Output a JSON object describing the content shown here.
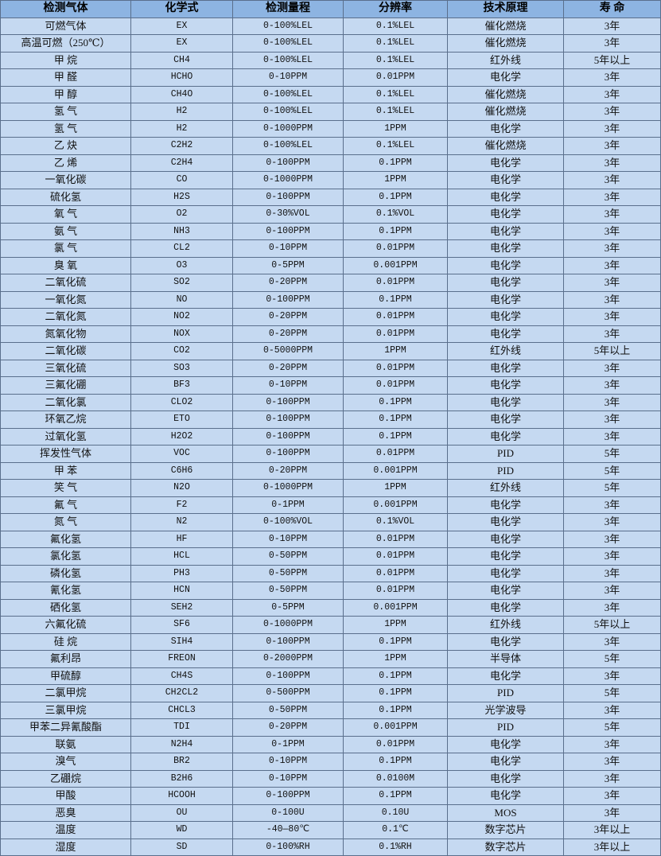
{
  "colors": {
    "header_bg": "#8db4e2",
    "row_bg": "#c5d9f1"
  },
  "table": {
    "headers": [
      "检测气体",
      "化学式",
      "检测量程",
      "分辨率",
      "技术原理",
      "寿 命"
    ],
    "rows": [
      [
        "可燃气体",
        "EX",
        "0-100%LEL",
        "0.1%LEL",
        "催化燃烧",
        "3年"
      ],
      [
        "高温可燃（250℃）",
        "EX",
        "0-100%LEL",
        "0.1%LEL",
        "催化燃烧",
        "3年"
      ],
      [
        "甲 烷",
        "CH4",
        "0-100%LEL",
        "0.1%LEL",
        "红外线",
        "5年以上"
      ],
      [
        "甲 醛",
        "HCHO",
        "0-10PPM",
        "0.01PPM",
        "电化学",
        "3年"
      ],
      [
        "甲 醇",
        "CH4O",
        "0-100%LEL",
        "0.1%LEL",
        "催化燃烧",
        "3年"
      ],
      [
        "氢 气",
        "H2",
        "0-100%LEL",
        "0.1%LEL",
        "催化燃烧",
        "3年"
      ],
      [
        "氢 气",
        "H2",
        "0-1000PPM",
        "1PPM",
        "电化学",
        "3年"
      ],
      [
        "乙 炔",
        "C2H2",
        "0-100%LEL",
        "0.1%LEL",
        "催化燃烧",
        "3年"
      ],
      [
        "乙 烯",
        "C2H4",
        "0-100PPM",
        "0.1PPM",
        "电化学",
        "3年"
      ],
      [
        "一氧化碳",
        "CO",
        "0-1000PPM",
        "1PPM",
        "电化学",
        "3年"
      ],
      [
        "硫化氢",
        "H2S",
        "0-100PPM",
        "0.1PPM",
        "电化学",
        "3年"
      ],
      [
        "氧 气",
        "O2",
        "0-30%VOL",
        "0.1%VOL",
        "电化学",
        "3年"
      ],
      [
        "氨 气",
        "NH3",
        "0-100PPM",
        "0.1PPM",
        "电化学",
        "3年"
      ],
      [
        "氯 气",
        "CL2",
        "0-10PPM",
        "0.01PPM",
        "电化学",
        "3年"
      ],
      [
        "臭 氧",
        "O3",
        "0-5PPM",
        "0.001PPM",
        "电化学",
        "3年"
      ],
      [
        "二氧化硫",
        "SO2",
        "0-20PPM",
        "0.01PPM",
        "电化学",
        "3年"
      ],
      [
        "一氧化氮",
        "NO",
        "0-100PPM",
        "0.1PPM",
        "电化学",
        "3年"
      ],
      [
        "二氧化氮",
        "NO2",
        "0-20PPM",
        "0.01PPM",
        "电化学",
        "3年"
      ],
      [
        "氮氧化物",
        "NOX",
        "0-20PPM",
        "0.01PPM",
        "电化学",
        "3年"
      ],
      [
        "二氧化碳",
        "CO2",
        "0-5000PPM",
        "1PPM",
        "红外线",
        "5年以上"
      ],
      [
        "三氧化硫",
        "SO3",
        "0-20PPM",
        "0.01PPM",
        "电化学",
        "3年"
      ],
      [
        "三氟化硼",
        "BF3",
        "0-10PPM",
        "0.01PPM",
        "电化学",
        "3年"
      ],
      [
        "二氧化氯",
        "CLO2",
        "0-100PPM",
        "0.1PPM",
        "电化学",
        "3年"
      ],
      [
        "环氧乙烷",
        "ETO",
        "0-100PPM",
        "0.1PPM",
        "电化学",
        "3年"
      ],
      [
        "过氧化氢",
        "H2O2",
        "0-100PPM",
        "0.1PPM",
        "电化学",
        "3年"
      ],
      [
        "挥发性气体",
        "VOC",
        "0-100PPM",
        "0.01PPM",
        "PID",
        "5年"
      ],
      [
        "甲 苯",
        "C6H6",
        "0-20PPM",
        "0.001PPM",
        "PID",
        "5年"
      ],
      [
        "笑 气",
        "N2O",
        "0-1000PPM",
        "1PPM",
        "红外线",
        "5年"
      ],
      [
        "氟 气",
        "F2",
        "0-1PPM",
        "0.001PPM",
        "电化学",
        "3年"
      ],
      [
        "氮 气",
        "N2",
        "0-100%VOL",
        "0.1%VOL",
        "电化学",
        "3年"
      ],
      [
        "氟化氢",
        "HF",
        "0-10PPM",
        "0.01PPM",
        "电化学",
        "3年"
      ],
      [
        "氯化氢",
        "HCL",
        "0-50PPM",
        "0.01PPM",
        "电化学",
        "3年"
      ],
      [
        "磷化氢",
        "PH3",
        "0-50PPM",
        "0.01PPM",
        "电化学",
        "3年"
      ],
      [
        "氰化氢",
        "HCN",
        "0-50PPM",
        "0.01PPM",
        "电化学",
        "3年"
      ],
      [
        "硒化氢",
        "SEH2",
        "0-5PPM",
        "0.001PPM",
        "电化学",
        "3年"
      ],
      [
        "六氟化硫",
        "SF6",
        "0-1000PPM",
        "1PPM",
        "红外线",
        "5年以上"
      ],
      [
        "硅 烷",
        "SIH4",
        "0-100PPM",
        "0.1PPM",
        "电化学",
        "3年"
      ],
      [
        "氟利昂",
        "FREON",
        "0-2000PPM",
        "1PPM",
        "半导体",
        "5年"
      ],
      [
        "甲硫醇",
        "CH4S",
        "0-100PPM",
        "0.1PPM",
        "电化学",
        "3年"
      ],
      [
        "二氯甲烷",
        "CH2CL2",
        "0-500PPM",
        "0.1PPM",
        "PID",
        "5年"
      ],
      [
        "三氯甲烷",
        "CHCL3",
        "0-50PPM",
        "0.1PPM",
        "光学波导",
        "3年"
      ],
      [
        "甲苯二异氰酸酯",
        "TDI",
        "0-20PPM",
        "0.001PPM",
        "PID",
        "5年"
      ],
      [
        "联氨",
        "N2H4",
        "0-1PPM",
        "0.01PPM",
        "电化学",
        "3年"
      ],
      [
        "溴气",
        "BR2",
        "0-10PPM",
        "0.1PPM",
        "电化学",
        "3年"
      ],
      [
        "乙硼烷",
        "B2H6",
        "0-10PPM",
        "0.0100M",
        "电化学",
        "3年"
      ],
      [
        "甲酸",
        "HCOOH",
        "0-100PPM",
        "0.1PPM",
        "电化学",
        "3年"
      ],
      [
        "恶臭",
        "OU",
        "0-100U",
        "0.10U",
        "MOS",
        "3年"
      ],
      [
        "温度",
        "WD",
        "-40—80℃",
        "0.1℃",
        "数字芯片",
        "3年以上"
      ],
      [
        "湿度",
        "SD",
        "0-100%RH",
        "0.1%RH",
        "数字芯片",
        "3年以上"
      ]
    ]
  }
}
